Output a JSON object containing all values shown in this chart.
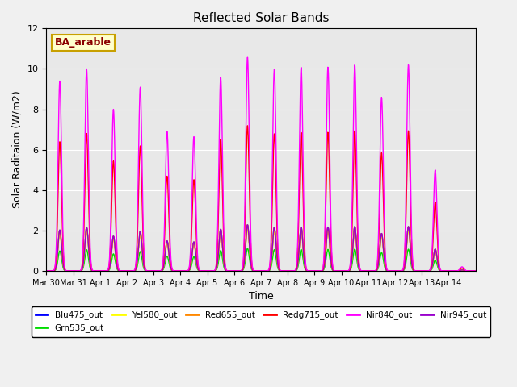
{
  "title": "Reflected Solar Bands",
  "xlabel": "Time",
  "ylabel_actual": "Solar Raditaion (W/m2)",
  "ylim": [
    0,
    12
  ],
  "bg_fig": "#f0f0f0",
  "bg_ax": "#e8e8e8",
  "annotation_text": "BA_arable",
  "annotation_color": "#8B0000",
  "annotation_bg": "#ffffcc",
  "annotation_border": "#c8a000",
  "tick_labels": [
    "Mar 30",
    "Mar 31",
    "Apr 1",
    "Apr 2",
    "Apr 3",
    "Apr 4",
    "Apr 5",
    "Apr 6",
    "Apr 7",
    "Apr 8",
    "Apr 9",
    "Apr 10",
    "Apr 11",
    "Apr 12",
    "Apr 13",
    "Apr 14"
  ],
  "peak_heights": [
    9.4,
    10.0,
    8.0,
    9.1,
    6.9,
    6.65,
    9.6,
    10.6,
    10.0,
    10.1,
    10.1,
    10.2,
    8.6,
    10.2,
    5.0,
    0.2
  ],
  "scales": {
    "Blu475_out": 0.215,
    "Grn535_out": 0.105,
    "Yel580_out": 0.195,
    "Red655_out": 0.215,
    "Redg715_out": 0.68,
    "Nir840_out": 1.0,
    "Nir945_out": 0.215
  },
  "colors": {
    "Blu475_out": "#0000ff",
    "Grn535_out": "#00dd00",
    "Yel580_out": "#ffff00",
    "Red655_out": "#ff8800",
    "Redg715_out": "#ff0000",
    "Nir840_out": "#ff00ff",
    "Nir945_out": "#9900cc"
  },
  "plot_order": [
    "Blu475_out",
    "Grn535_out",
    "Yel580_out",
    "Red655_out",
    "Nir945_out",
    "Redg715_out",
    "Nir840_out"
  ],
  "legend_order": [
    "Blu475_out",
    "Grn535_out",
    "Yel580_out",
    "Red655_out",
    "Redg715_out",
    "Nir840_out",
    "Nir945_out"
  ]
}
